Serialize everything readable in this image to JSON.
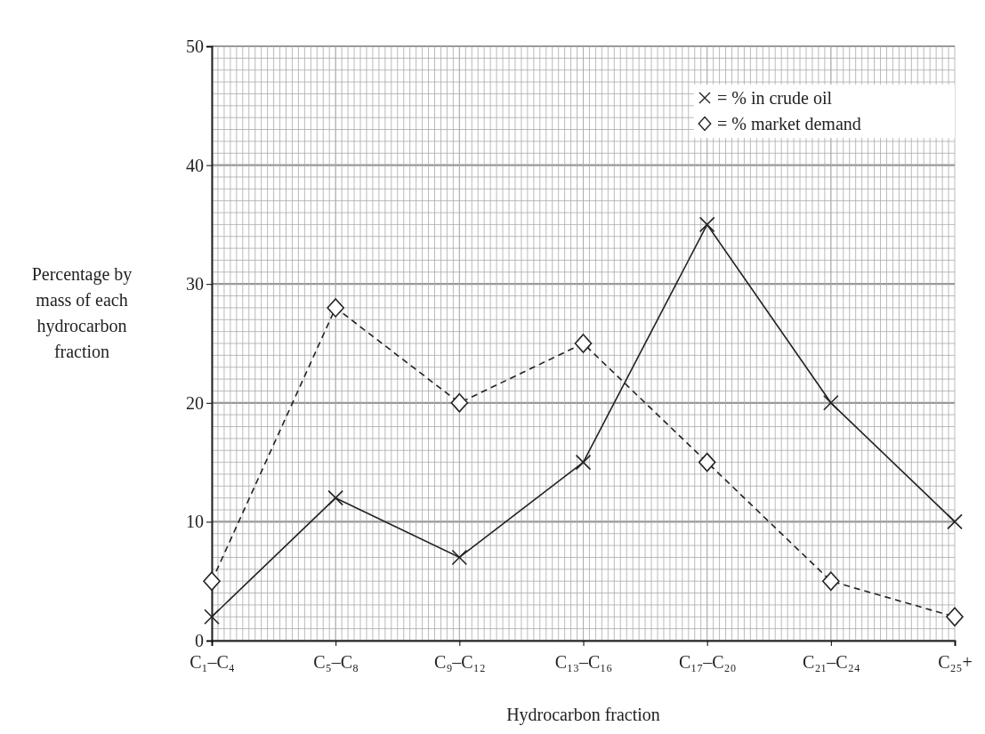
{
  "chart_data": {
    "type": "line",
    "xlabel": "Hydrocarbon fraction",
    "ylabel": "Percentage by mass of each hydrocarbon fraction",
    "categories": [
      "C₁–C₄",
      "C₅–C₈",
      "C₉–C₁₂",
      "C₁₃–C₁₆",
      "C₁₇–C₂₀",
      "C₂₁–C₂₄",
      "C₂₅+"
    ],
    "series": [
      {
        "name": "= % in crude oil",
        "color": "#222222",
        "marker": "cross",
        "line_style": "solid",
        "values": [
          2,
          12,
          7,
          15,
          35,
          20,
          10
        ]
      },
      {
        "name": "= % market demand",
        "color": "#222222",
        "marker": "diamond",
        "line_style": "dashed",
        "values": [
          5,
          28,
          20,
          25,
          15,
          5,
          2
        ]
      }
    ],
    "ylim": [
      0,
      50
    ],
    "yticks": [
      0,
      10,
      20,
      30,
      40,
      50
    ],
    "grid": true,
    "legend": "top right"
  }
}
